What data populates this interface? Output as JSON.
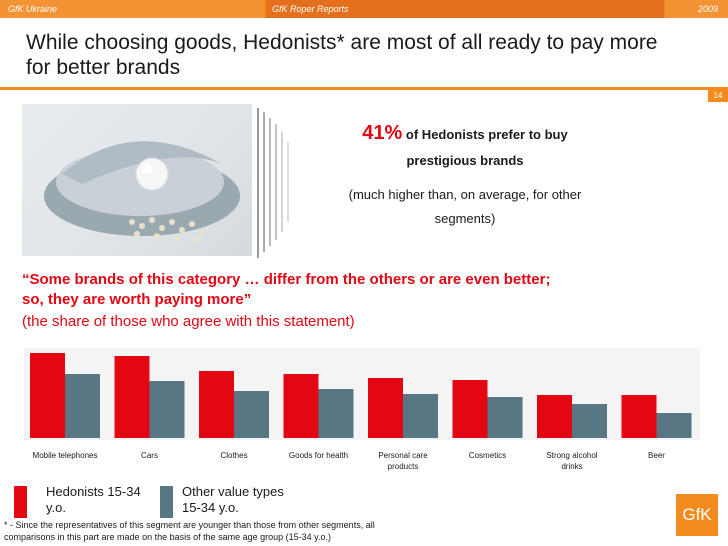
{
  "header": {
    "left": "GfK Ukraine",
    "center": "GfK Roper Reports",
    "right": "2009"
  },
  "title_line1": "While choosing goods, Hedonists* are most of all ready to pay more",
  "title_line2": "for better brands",
  "page_number": "14",
  "stat": {
    "percent": "41%",
    "text_line1": "of Hedonists prefer to buy",
    "text_line2": "prestigious brands",
    "sub_line1": "(much higher than, on average, for other",
    "sub_line2": "segments)"
  },
  "quote_line1": "“Some brands of this category … differ from the others or are even better;",
  "quote_line2": "so, they are worth paying more”",
  "quote_sub": "(the share of those who agree with this statement)",
  "legend": {
    "hedonists_line1": "Hedonists 15-34",
    "hedonists_line2": "y.o.",
    "other_line1": "Other value types",
    "other_line2": "15-34 y.o."
  },
  "footnote_line1": "* - Since the representatives of this segment are younger than those from other segments, all",
  "footnote_line2": "comparisons in this part are made on the basis of the same age group (15-34 y.o.)",
  "logo_text": "GfK",
  "colors": {
    "accent": "#f28a1e",
    "hedonists": "#e30613",
    "other": "#587683"
  },
  "chart_data": {
    "type": "bar",
    "categories": [
      "Mobile telephones",
      "Cars",
      "Clothes",
      "Goods for health",
      "Personal care products",
      "Cosmetics",
      "Strong alcohol drinks",
      "Beer"
    ],
    "series": [
      {
        "name": "Hedonists 15-34 y.o.",
        "values": [
          85,
          82,
          67,
          64,
          60,
          58,
          43,
          43
        ]
      },
      {
        "name": "Other value types 15-34 y.o.",
        "values": [
          64,
          57,
          47,
          49,
          44,
          41,
          34,
          25
        ]
      }
    ],
    "ylim": [
      0,
      100
    ],
    "grid": false,
    "legend": "bottom-left"
  }
}
